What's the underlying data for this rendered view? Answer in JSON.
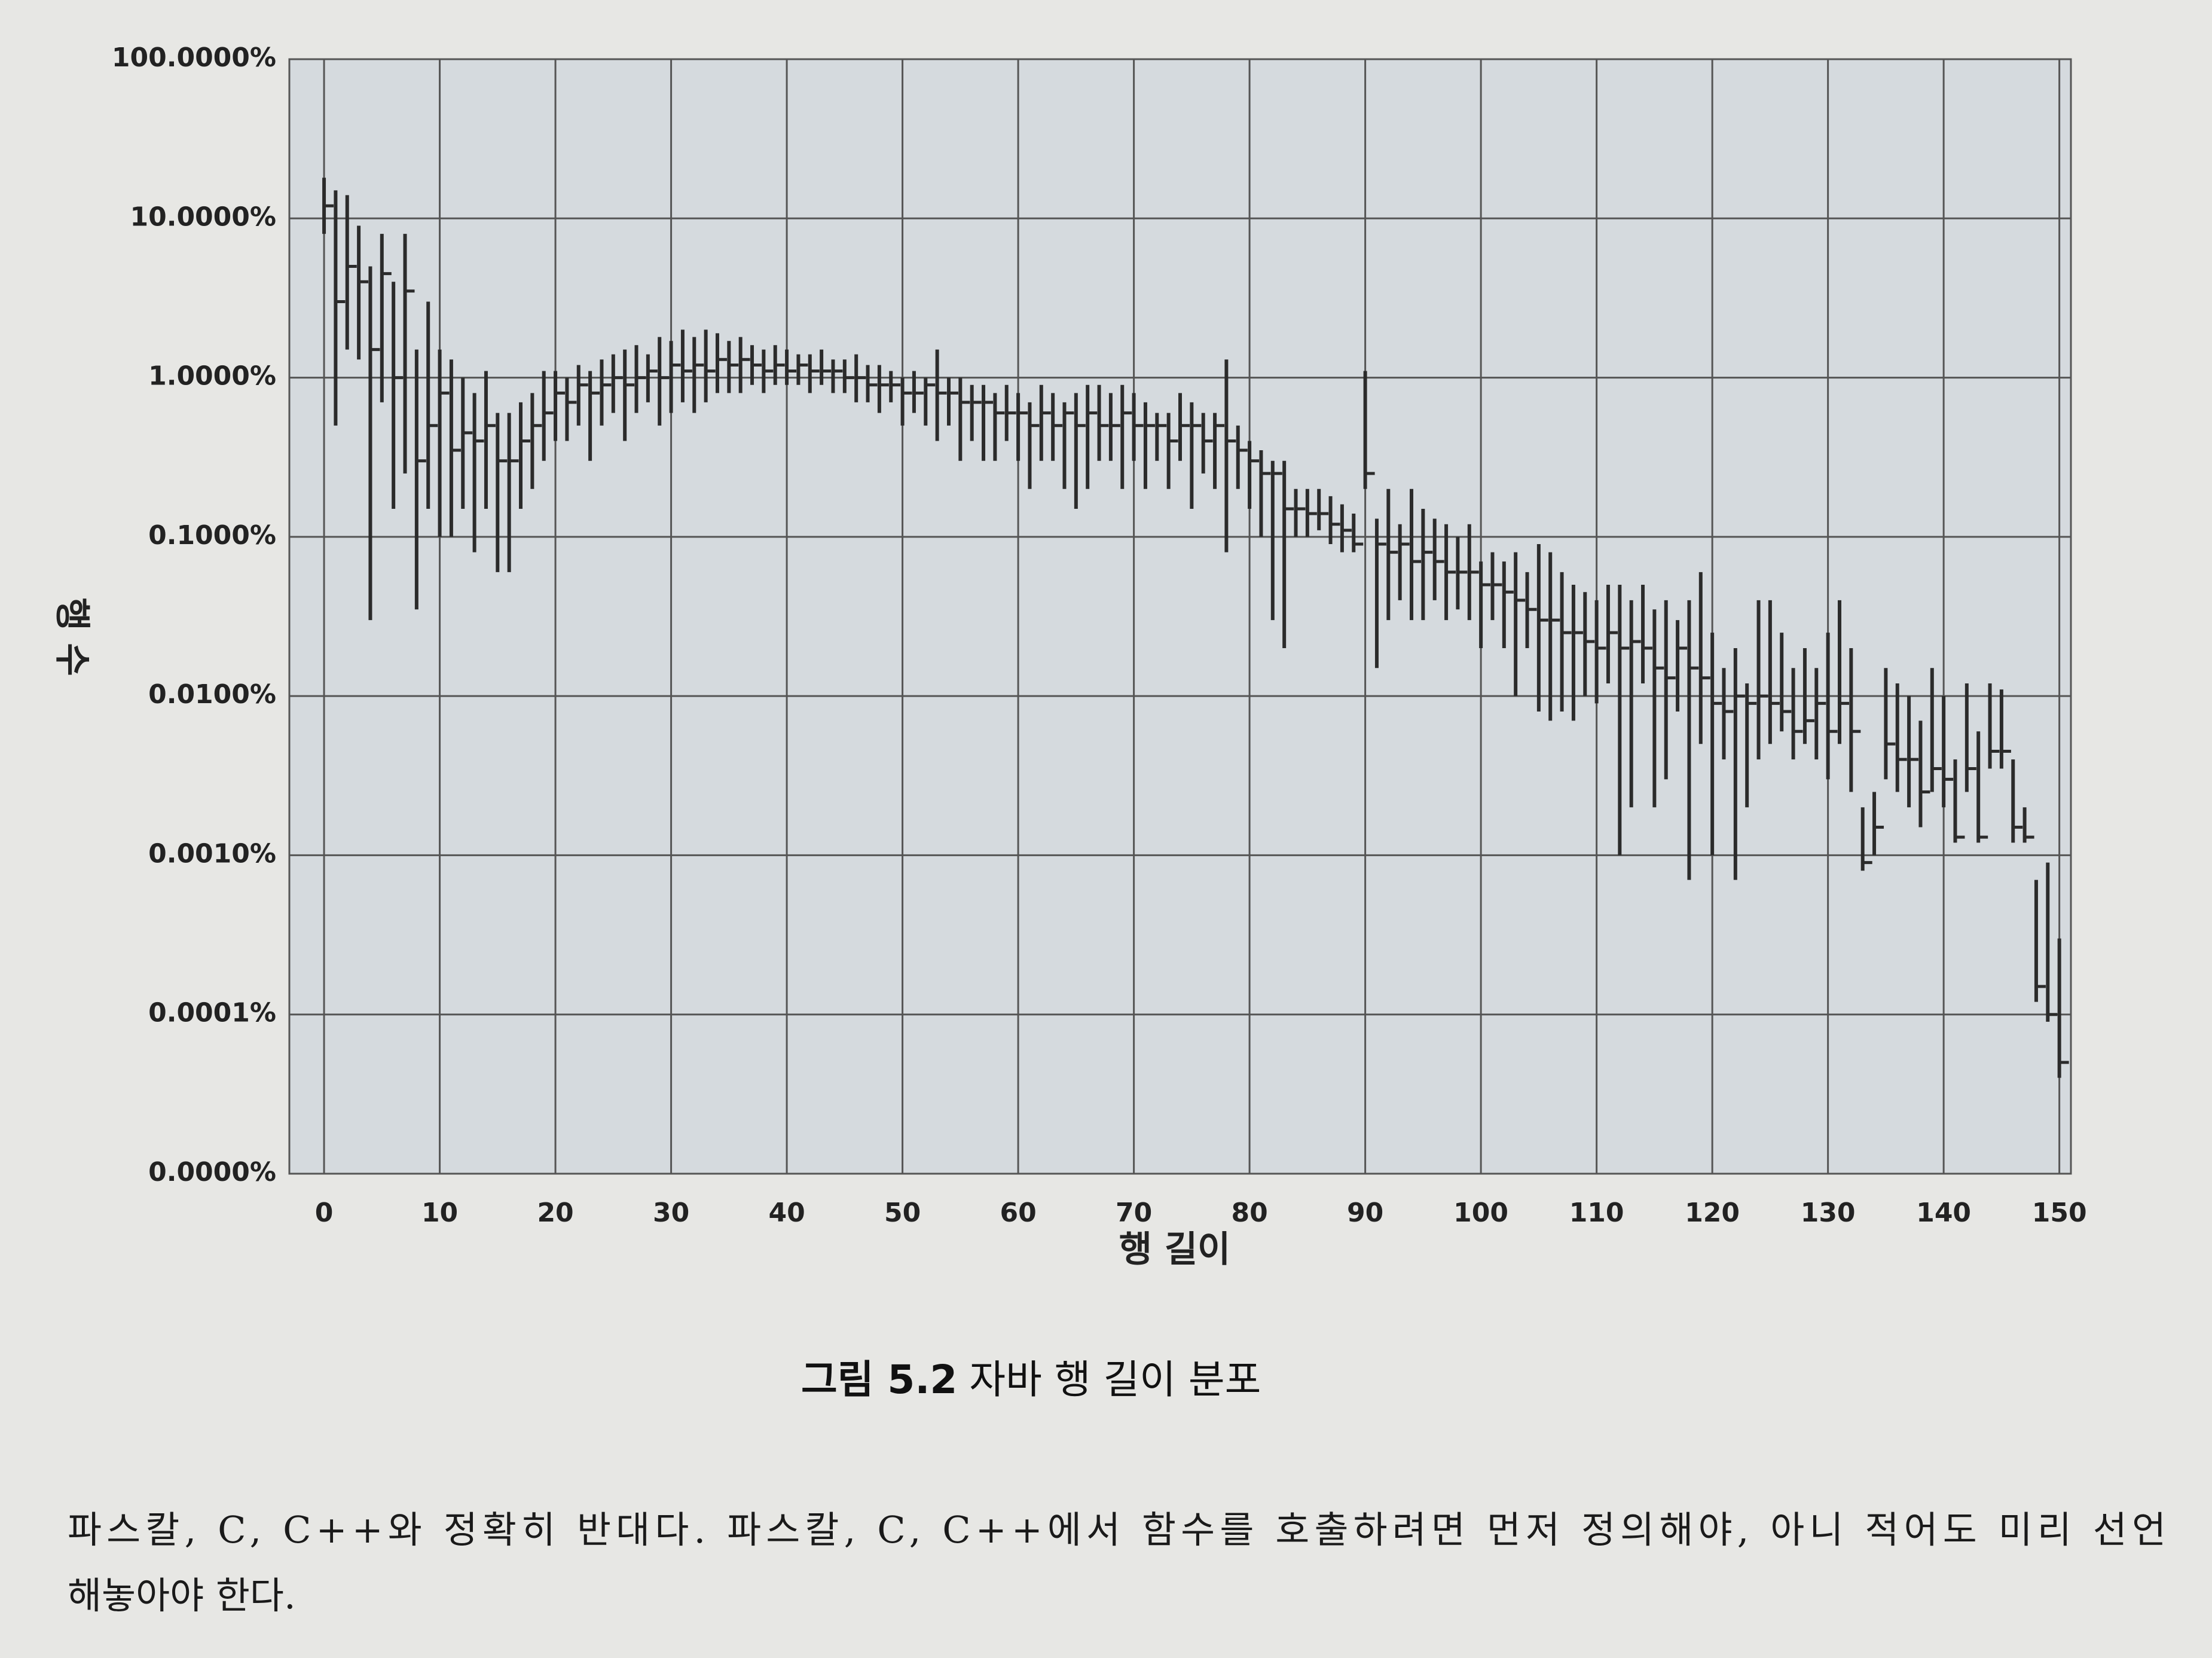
{
  "chart_data": {
    "type": "hilo",
    "figure_label": "그림 5.2",
    "title": "자바 행 길이 분포",
    "xlabel": "행 길이",
    "ylabel": "행 수",
    "log_y": true,
    "grid": true,
    "color": "#2b2b2b",
    "xlim": [
      -3,
      151
    ],
    "xticks": [
      0,
      10,
      20,
      30,
      40,
      50,
      60,
      70,
      80,
      90,
      100,
      110,
      120,
      130,
      140,
      150
    ],
    "ylim": [
      1e-05,
      100
    ],
    "yticks": [
      {
        "value": 100,
        "label": "100.0000%"
      },
      {
        "value": 10,
        "label": "10.0000%"
      },
      {
        "value": 1,
        "label": "1.0000%"
      },
      {
        "value": 0.1,
        "label": "0.1000%"
      },
      {
        "value": 0.01,
        "label": "0.0100%"
      },
      {
        "value": 0.001,
        "label": "0.0010%"
      },
      {
        "value": 0.0001,
        "label": "0.0001%"
      },
      {
        "value": 1e-05,
        "label": "0.0000%"
      }
    ],
    "x": [
      0,
      1,
      2,
      3,
      4,
      5,
      6,
      7,
      8,
      9,
      10,
      11,
      12,
      13,
      14,
      15,
      16,
      17,
      18,
      19,
      20,
      21,
      22,
      23,
      24,
      25,
      26,
      27,
      28,
      29,
      30,
      31,
      32,
      33,
      34,
      35,
      36,
      37,
      38,
      39,
      40,
      41,
      42,
      43,
      44,
      45,
      46,
      47,
      48,
      49,
      50,
      51,
      52,
      53,
      54,
      55,
      56,
      57,
      58,
      59,
      60,
      61,
      62,
      63,
      64,
      65,
      66,
      67,
      68,
      69,
      70,
      71,
      72,
      73,
      74,
      75,
      76,
      77,
      78,
      79,
      80,
      81,
      82,
      83,
      84,
      85,
      86,
      87,
      88,
      89,
      90,
      91,
      92,
      93,
      94,
      95,
      96,
      97,
      98,
      99,
      100,
      101,
      102,
      103,
      104,
      105,
      106,
      107,
      108,
      109,
      110,
      111,
      112,
      113,
      114,
      115,
      116,
      117,
      118,
      119,
      120,
      121,
      122,
      123,
      124,
      125,
      126,
      127,
      128,
      129,
      130,
      131,
      132,
      133,
      134,
      135,
      136,
      137,
      138,
      139,
      140,
      141,
      142,
      143,
      144,
      145,
      146,
      147,
      148,
      149,
      150
    ],
    "mid": [
      12,
      3,
      5,
      4,
      1.5,
      4.5,
      1,
      3.5,
      0.3,
      0.5,
      0.8,
      0.35,
      0.45,
      0.4,
      0.5,
      0.3,
      0.3,
      0.4,
      0.5,
      0.6,
      0.8,
      0.7,
      0.9,
      0.8,
      0.9,
      1.0,
      0.9,
      1.0,
      1.1,
      1.0,
      1.2,
      1.1,
      1.2,
      1.1,
      1.3,
      1.2,
      1.3,
      1.2,
      1.1,
      1.2,
      1.1,
      1.2,
      1.1,
      1.1,
      1.1,
      1.0,
      1.0,
      0.9,
      0.9,
      0.9,
      0.8,
      0.8,
      0.9,
      0.8,
      0.8,
      0.7,
      0.7,
      0.7,
      0.6,
      0.6,
      0.6,
      0.5,
      0.6,
      0.5,
      0.6,
      0.5,
      0.6,
      0.5,
      0.5,
      0.6,
      0.5,
      0.5,
      0.5,
      0.4,
      0.5,
      0.5,
      0.4,
      0.5,
      0.4,
      0.35,
      0.3,
      0.25,
      0.25,
      0.15,
      0.15,
      0.14,
      0.14,
      0.12,
      0.11,
      0.09,
      0.25,
      0.09,
      0.08,
      0.09,
      0.07,
      0.08,
      0.07,
      0.06,
      0.06,
      0.06,
      0.05,
      0.05,
      0.045,
      0.04,
      0.035,
      0.03,
      0.03,
      0.025,
      0.025,
      0.022,
      0.02,
      0.025,
      0.02,
      0.022,
      0.02,
      0.015,
      0.013,
      0.02,
      0.015,
      0.013,
      0.009,
      0.008,
      0.01,
      0.009,
      0.01,
      0.009,
      0.008,
      0.006,
      0.007,
      0.009,
      0.006,
      0.009,
      0.006,
      0.0009,
      0.0015,
      0.005,
      0.004,
      0.004,
      0.0025,
      0.0035,
      0.003,
      0.0013,
      0.0035,
      0.0013,
      0.0045,
      0.0045,
      0.0015,
      0.0013,
      0.00015,
      0.0001,
      5e-05
    ],
    "low": [
      8,
      0.5,
      1.5,
      1.3,
      0.03,
      0.7,
      0.15,
      0.25,
      0.035,
      0.15,
      0.1,
      0.1,
      0.15,
      0.08,
      0.15,
      0.06,
      0.06,
      0.15,
      0.2,
      0.3,
      0.4,
      0.4,
      0.5,
      0.3,
      0.5,
      0.6,
      0.4,
      0.6,
      0.7,
      0.5,
      0.6,
      0.7,
      0.6,
      0.7,
      0.8,
      0.8,
      0.8,
      0.9,
      0.8,
      0.9,
      0.9,
      0.9,
      0.8,
      0.9,
      0.8,
      0.8,
      0.7,
      0.7,
      0.6,
      0.7,
      0.5,
      0.6,
      0.5,
      0.4,
      0.5,
      0.3,
      0.4,
      0.3,
      0.3,
      0.4,
      0.3,
      0.2,
      0.3,
      0.3,
      0.2,
      0.15,
      0.2,
      0.3,
      0.3,
      0.2,
      0.3,
      0.2,
      0.3,
      0.2,
      0.3,
      0.15,
      0.25,
      0.2,
      0.08,
      0.2,
      0.15,
      0.1,
      0.03,
      0.02,
      0.1,
      0.1,
      0.11,
      0.09,
      0.08,
      0.08,
      0.2,
      0.015,
      0.03,
      0.04,
      0.03,
      0.03,
      0.04,
      0.03,
      0.035,
      0.03,
      0.02,
      0.03,
      0.02,
      0.01,
      0.02,
      0.008,
      0.007,
      0.008,
      0.007,
      0.01,
      0.009,
      0.012,
      0.001,
      0.002,
      0.012,
      0.002,
      0.003,
      0.008,
      0.0007,
      0.005,
      0.001,
      0.004,
      0.0007,
      0.002,
      0.004,
      0.005,
      0.006,
      0.004,
      0.005,
      0.004,
      0.003,
      0.005,
      0.0025,
      0.0008,
      0.001,
      0.003,
      0.0025,
      0.002,
      0.0015,
      0.0025,
      0.002,
      0.0012,
      0.0025,
      0.0012,
      0.0035,
      0.0035,
      0.0012,
      0.0012,
      0.00012,
      9e-05,
      4e-05
    ],
    "high": [
      18,
      15,
      14,
      9,
      5,
      8,
      4,
      8,
      1.5,
      3,
      1.5,
      1.3,
      1,
      0.8,
      1.1,
      0.6,
      0.6,
      0.7,
      0.8,
      1.1,
      1.1,
      1.0,
      1.2,
      1.1,
      1.3,
      1.4,
      1.5,
      1.6,
      1.4,
      1.8,
      1.7,
      2.0,
      1.8,
      2.0,
      1.9,
      1.7,
      1.8,
      1.6,
      1.5,
      1.6,
      1.5,
      1.4,
      1.4,
      1.5,
      1.3,
      1.3,
      1.4,
      1.2,
      1.2,
      1.1,
      1.0,
      1.1,
      1.0,
      1.5,
      1.0,
      1.0,
      0.9,
      0.9,
      0.8,
      0.9,
      0.8,
      0.7,
      0.9,
      0.8,
      0.7,
      0.8,
      0.9,
      0.9,
      0.8,
      0.9,
      0.8,
      0.7,
      0.6,
      0.6,
      0.8,
      0.7,
      0.6,
      0.6,
      1.3,
      0.5,
      0.4,
      0.35,
      0.3,
      0.3,
      0.2,
      0.2,
      0.2,
      0.18,
      0.16,
      0.14,
      1.1,
      0.13,
      0.2,
      0.12,
      0.2,
      0.15,
      0.13,
      0.12,
      0.1,
      0.12,
      0.07,
      0.08,
      0.07,
      0.08,
      0.06,
      0.09,
      0.08,
      0.06,
      0.05,
      0.045,
      0.04,
      0.05,
      0.05,
      0.04,
      0.05,
      0.035,
      0.04,
      0.03,
      0.04,
      0.06,
      0.025,
      0.015,
      0.02,
      0.012,
      0.04,
      0.04,
      0.025,
      0.015,
      0.02,
      0.015,
      0.025,
      0.04,
      0.02,
      0.002,
      0.0025,
      0.015,
      0.012,
      0.01,
      0.007,
      0.015,
      0.01,
      0.004,
      0.012,
      0.006,
      0.012,
      0.011,
      0.004,
      0.002,
      0.0007,
      0.0009,
      0.0003
    ]
  },
  "body_text": [
    "파스칼, C, C++와 정확히 반대다. 파스칼, C, C++에서 함수를 호출하려면 먼저 정의해야, 아니 적어도 미리 선언",
    "해놓아야 한다."
  ]
}
